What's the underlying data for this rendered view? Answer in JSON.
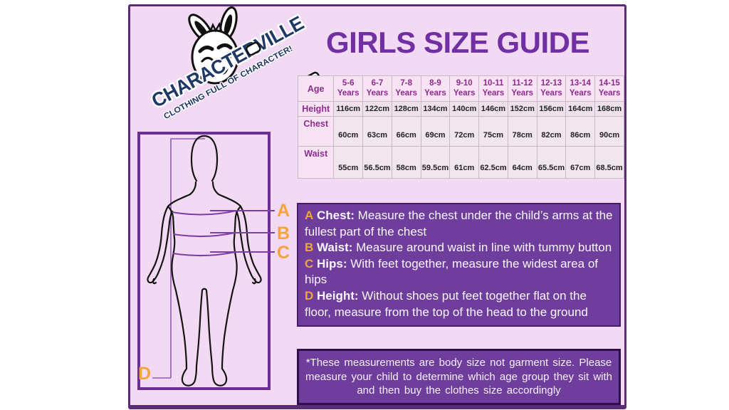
{
  "brand": {
    "name": "CHARACTERVILLE",
    "tagline": "CLOTHING FULL OF CHARACTER!"
  },
  "title": "GIRLS SIZE GUIDE",
  "size_table": {
    "header_label": "Age",
    "ages": [
      "5-6\nYears",
      "6-7\nYears",
      "7-8\nYears",
      "8-9\nYears",
      "9-10\nYears",
      "10-11\nYears",
      "11-12\nYears",
      "12-13\nYears",
      "13-14\nYears",
      "14-15\nYears"
    ],
    "rows": [
      {
        "label": "Height",
        "values": [
          "116cm",
          "122cm",
          "128cm",
          "134cm",
          "140cm",
          "146cm",
          "152cm",
          "156cm",
          "164cm",
          "168cm"
        ]
      },
      {
        "label": "Chest",
        "values": [
          "60cm",
          "63cm",
          "66cm",
          "69cm",
          "72cm",
          "75cm",
          "78cm",
          "82cm",
          "86cm",
          "90cm"
        ]
      },
      {
        "label": "Waist",
        "values": [
          "55cm",
          "56.5cm",
          "58cm",
          "59.5cm",
          "61cm",
          "62.5cm",
          "64cm",
          "65.5cm",
          "67cm",
          "68.5cm"
        ]
      }
    ]
  },
  "diagram": {
    "markers": {
      "a": "A",
      "b": "B",
      "c": "C",
      "d": "D"
    }
  },
  "instructions": {
    "items": [
      {
        "letter": "A",
        "label": "Chest:",
        "text": "Measure the chest under the child’s arms at the fullest part of the chest"
      },
      {
        "letter": "B",
        "label": "Waist:",
        "text": "Measure around waist in line with tummy button"
      },
      {
        "letter": "C",
        "label": "Hips:",
        "text": "With feet together, measure the widest area of hips"
      },
      {
        "letter": "D",
        "label": "Height:",
        "text": "Without shoes put feet together flat on the floor, measure from the top of the head to the ground"
      }
    ]
  },
  "footnote": "*These measurements are body size not garment size. Please measure your child to determine which age group they sit with and then buy the clothes size accordingly",
  "colors": {
    "title_purple": "#7130A2",
    "box_purple": "#6F3D9C",
    "accent_orange": "#F4A43C",
    "brand_navy": "#1F3864",
    "panel_pink": "#F3DAF4"
  }
}
